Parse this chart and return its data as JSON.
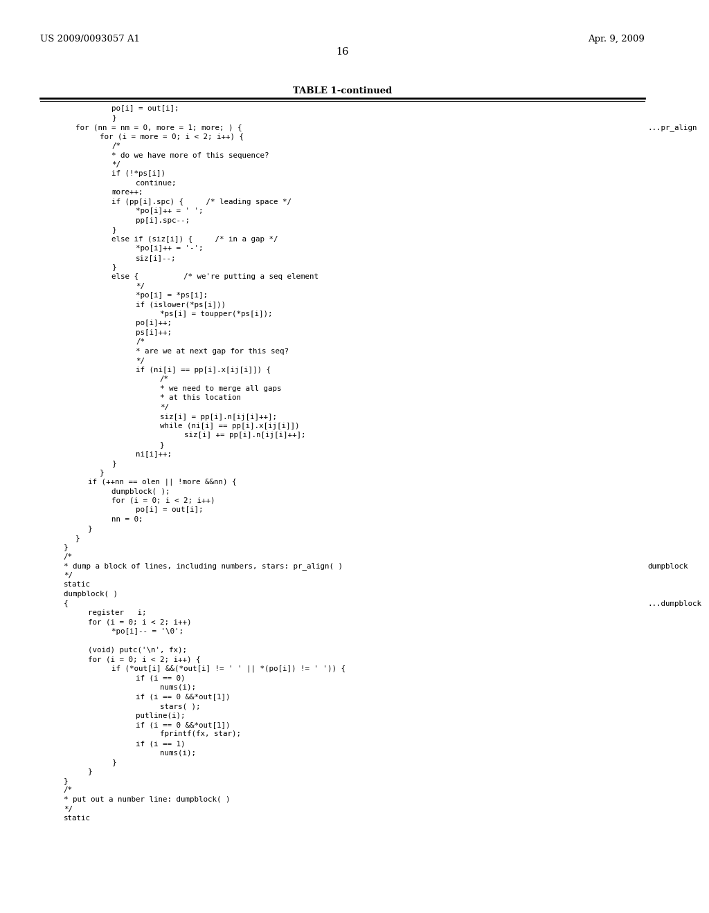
{
  "bg_color": "#ffffff",
  "top_left_text": "US 2009/0093057 A1",
  "top_right_text": "Apr. 9, 2009",
  "page_number": "16",
  "table_title": "TABLE 1-continued",
  "right_label1": "...pr_align",
  "right_label2": "dumpblock",
  "right_label3": "...dumpblock",
  "code_lines": [
    {
      "indent": 3,
      "text": "po[i] = out[i];",
      "tab": 0
    },
    {
      "indent": 3,
      "text": "}",
      "tab": 8
    },
    {
      "indent": 0,
      "text": "for (nn = nm = 0, more = 1; more; ) {",
      "tab": 0
    },
    {
      "indent": 2,
      "text": "for (i = more = 0; i < 2; i++) {",
      "tab": 0
    },
    {
      "indent": 3,
      "text": "/*",
      "tab": 0
    },
    {
      "indent": 3,
      "text": "* do we have more of this sequence?",
      "tab": 0
    },
    {
      "indent": 3,
      "text": "*/",
      "tab": 0
    },
    {
      "indent": 3,
      "text": "if (!*ps[i])",
      "tab": 0
    },
    {
      "indent": 5,
      "text": "continue;",
      "tab": 0
    },
    {
      "indent": 3,
      "text": "more++;",
      "tab": 0
    },
    {
      "indent": 3,
      "text": "if (pp[i].spc) {     /* leading space */",
      "tab": 0
    },
    {
      "indent": 5,
      "text": "*po[i]++ = ' ';",
      "tab": 0
    },
    {
      "indent": 5,
      "text": "pp[i].spc--;",
      "tab": 0
    },
    {
      "indent": 3,
      "text": "}",
      "tab": 0
    },
    {
      "indent": 3,
      "text": "else if (siz[i]) {     /* in a gap */",
      "tab": 0
    },
    {
      "indent": 5,
      "text": "*po[i]++ = '-';",
      "tab": 0
    },
    {
      "indent": 5,
      "text": "siz[i]--;",
      "tab": 0
    },
    {
      "indent": 3,
      "text": "}",
      "tab": 0
    },
    {
      "indent": 3,
      "text": "else {          /* we're putting a seq element",
      "tab": 0
    },
    {
      "indent": 5,
      "text": "*/",
      "tab": 0
    },
    {
      "indent": 5,
      "text": "*po[i] = *ps[i];",
      "tab": 0
    },
    {
      "indent": 5,
      "text": "if (islower(*ps[i]))",
      "tab": 0
    },
    {
      "indent": 7,
      "text": "*ps[i] = toupper(*ps[i]);",
      "tab": 0
    },
    {
      "indent": 5,
      "text": "po[i]++;",
      "tab": 0
    },
    {
      "indent": 5,
      "text": "ps[i]++;",
      "tab": 0
    },
    {
      "indent": 5,
      "text": "/*",
      "tab": 0
    },
    {
      "indent": 5,
      "text": "* are we at next gap for this seq?",
      "tab": 0
    },
    {
      "indent": 5,
      "text": "*/",
      "tab": 0
    },
    {
      "indent": 5,
      "text": "if (ni[i] == pp[i].x[ij[i]]) {",
      "tab": 0
    },
    {
      "indent": 7,
      "text": "/*",
      "tab": 0
    },
    {
      "indent": 7,
      "text": "* we need to merge all gaps",
      "tab": 0
    },
    {
      "indent": 7,
      "text": "* at this location",
      "tab": 0
    },
    {
      "indent": 7,
      "text": "*/",
      "tab": 0
    },
    {
      "indent": 7,
      "text": "siz[i] = pp[i].n[ij[i]++];",
      "tab": 0
    },
    {
      "indent": 7,
      "text": "while (ni[i] == pp[i].x[ij[i]])",
      "tab": 0
    },
    {
      "indent": 9,
      "text": "siz[i] += pp[i].n[ij[i]++];",
      "tab": 0
    },
    {
      "indent": 7,
      "text": "}",
      "tab": 0
    },
    {
      "indent": 5,
      "text": "ni[i]++;",
      "tab": 0
    },
    {
      "indent": 3,
      "text": "}",
      "tab": 0
    },
    {
      "indent": 2,
      "text": "}",
      "tab": 0
    },
    {
      "indent": 1,
      "text": "if (++nn == olen || !more &&nn) {",
      "tab": 0
    },
    {
      "indent": 3,
      "text": "dumpblock( );",
      "tab": 0
    },
    {
      "indent": 3,
      "text": "for (i = 0; i < 2; i++)",
      "tab": 0
    },
    {
      "indent": 5,
      "text": "po[i] = out[i];",
      "tab": 0
    },
    {
      "indent": 3,
      "text": "nn = 0;",
      "tab": 0
    },
    {
      "indent": 1,
      "text": "}",
      "tab": 0
    },
    {
      "indent": 0,
      "text": "}",
      "tab": 0
    },
    {
      "indent": -1,
      "text": "}",
      "tab": 0
    },
    {
      "indent": -1,
      "text": "/*",
      "tab": 0
    },
    {
      "indent": -1,
      "text": "* dump a block of lines, including numbers, stars: pr_align( )",
      "tab": 0
    },
    {
      "indent": -1,
      "text": "*/",
      "tab": 0
    },
    {
      "indent": -1,
      "text": "static",
      "tab": 0
    },
    {
      "indent": -1,
      "text": "dumpblock( )",
      "tab": 0
    },
    {
      "indent": -1,
      "text": "{",
      "tab": 0
    },
    {
      "indent": 1,
      "text": "register   i;",
      "tab": 0
    },
    {
      "indent": 1,
      "text": "for (i = 0; i < 2; i++)",
      "tab": 0
    },
    {
      "indent": 3,
      "text": "*po[i]-- = '\\0';",
      "tab": 0
    },
    {
      "indent": 0,
      "text": "",
      "tab": 0
    },
    {
      "indent": 1,
      "text": "(void) putc('\\n', fx);",
      "tab": 0
    },
    {
      "indent": 1,
      "text": "for (i = 0; i < 2; i++) {",
      "tab": 0
    },
    {
      "indent": 3,
      "text": "if (*out[i] &&(*out[i] != ' ' || *(po[i]) != ' ')) {",
      "tab": 0
    },
    {
      "indent": 5,
      "text": "if (i == 0)",
      "tab": 0
    },
    {
      "indent": 7,
      "text": "nums(i);",
      "tab": 0
    },
    {
      "indent": 5,
      "text": "if (i == 0 &&*out[1])",
      "tab": 0
    },
    {
      "indent": 7,
      "text": "stars( );",
      "tab": 0
    },
    {
      "indent": 5,
      "text": "putline(i);",
      "tab": 0
    },
    {
      "indent": 5,
      "text": "if (i == 0 &&*out[1])",
      "tab": 0
    },
    {
      "indent": 7,
      "text": "fprintf(fx, star);",
      "tab": 0
    },
    {
      "indent": 5,
      "text": "if (i == 1)",
      "tab": 0
    },
    {
      "indent": 7,
      "text": "nums(i);",
      "tab": 0
    },
    {
      "indent": 3,
      "text": "}",
      "tab": 0
    },
    {
      "indent": 1,
      "text": "}",
      "tab": 0
    },
    {
      "indent": -1,
      "text": "}",
      "tab": 0
    },
    {
      "indent": -1,
      "text": "/*",
      "tab": 0
    },
    {
      "indent": -1,
      "text": "* put out a number line: dumpblock( )",
      "tab": 0
    },
    {
      "indent": -1,
      "text": "*/",
      "tab": 0
    },
    {
      "indent": -1,
      "text": "static",
      "tab": 0
    }
  ]
}
